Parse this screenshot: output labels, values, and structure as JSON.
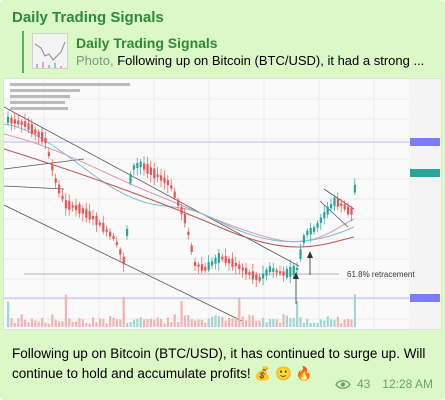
{
  "channel": {
    "name": "Daily Trading Signals"
  },
  "reply": {
    "title": "Daily Trading Signals",
    "media_label": "Photo,",
    "text": "Following up on Bitcoin (BTC/USD), it had a strong ..."
  },
  "chart": {
    "annotation": "61.8% retracement"
  },
  "message": {
    "text": "Following up on Bitcoin (BTC/USD), it has continued to surge up. Will continue to hold and accumulate profits! 💰 🙂 🔥",
    "views": "43",
    "time": "12:28 AM"
  },
  "colors": {
    "bubble": "#dcf8c6",
    "channel_name": "#2d8a3a",
    "meta": "#6aa36a",
    "candle_up": "#26a69a",
    "candle_down": "#ef5350"
  }
}
